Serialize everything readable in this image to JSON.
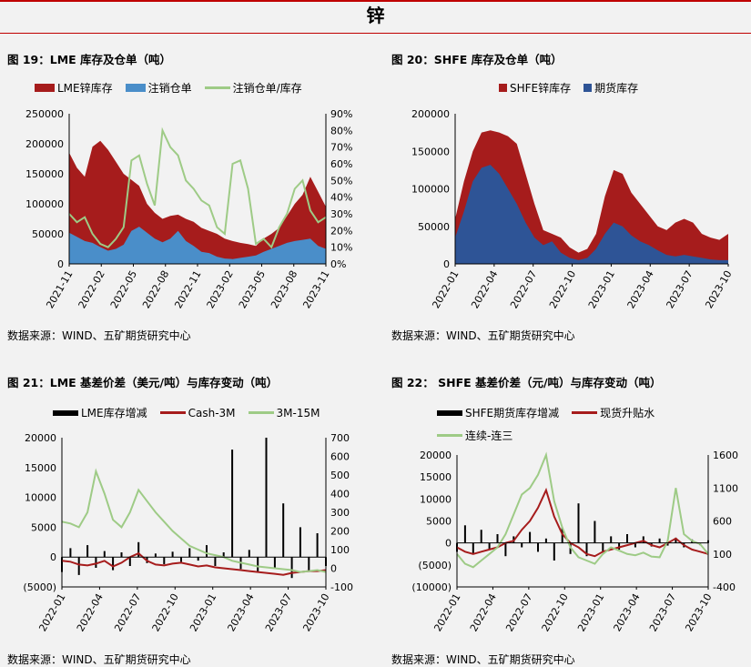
{
  "page": {
    "title": "锌"
  },
  "colors": {
    "red": "#a61c1c",
    "blue": "#2e5496",
    "light_blue": "#4a8ec9",
    "green": "#9ecb86",
    "black": "#000000",
    "neg_label": "#c00000"
  },
  "charts": [
    {
      "title": "图 19：LME 库存及仓单（吨）",
      "source": "数据来源：WIND、五矿期货研究中心",
      "legend": [
        "LME锌库存",
        "注销仓单",
        "注销仓单/库存"
      ]
    },
    {
      "title": "图 20：SHFE 库存及仓单（吨）",
      "source": "数据来源：WIND、五矿期货研究中心",
      "legend": [
        "SHFE锌库存",
        "期货库存"
      ]
    },
    {
      "title": "图 21：LME 基差价差（美元/吨）与库存变动（吨）",
      "source": "数据来源：WIND、五矿期货研究中心",
      "legend": [
        "LME库存增减",
        "Cash-3M",
        "3M-15M"
      ]
    },
    {
      "title": "图 22： SHFE 基差价差（元/吨）与库存变动（吨）",
      "source": "数据来源：WIND、五矿期货研究中心",
      "legend": [
        "SHFE期货库存增减",
        "现货升贴水",
        "连续-连三"
      ]
    }
  ],
  "chart_data": [
    {
      "type": "area",
      "x_ticks": [
        "2021-11",
        "2022-02",
        "2022-05",
        "2022-08",
        "2022-11",
        "2023-02",
        "2023-05",
        "2023-08",
        "2023-11"
      ],
      "ylim": [
        0,
        250000
      ],
      "y_ticks": [
        "0",
        "50000",
        "100000",
        "150000",
        "200000",
        "250000"
      ],
      "y2lim": [
        0,
        90
      ],
      "y2_ticks": [
        "0%",
        "10%",
        "20%",
        "30%",
        "40%",
        "50%",
        "60%",
        "70%",
        "80%",
        "90%"
      ],
      "series": [
        {
          "name": "LME锌库存",
          "kind": "area",
          "axis": "left",
          "values": [
            185000,
            160000,
            145000,
            195000,
            205000,
            190000,
            170000,
            150000,
            140000,
            130000,
            100000,
            85000,
            75000,
            80000,
            82000,
            75000,
            70000,
            60000,
            55000,
            50000,
            42000,
            38000,
            35000,
            33000,
            30000,
            42000,
            50000,
            60000,
            80000,
            100000,
            115000,
            145000,
            120000,
            95000
          ]
        },
        {
          "name": "注销仓单",
          "kind": "area",
          "axis": "left",
          "values": [
            52000,
            45000,
            38000,
            35000,
            28000,
            22000,
            25000,
            32000,
            55000,
            62000,
            52000,
            42000,
            36000,
            42000,
            55000,
            38000,
            30000,
            20000,
            18000,
            12000,
            9000,
            8000,
            10000,
            12000,
            14000,
            20000,
            25000,
            30000,
            35000,
            38000,
            40000,
            42000,
            30000,
            25000
          ]
        },
        {
          "name": "注销仓单/库存",
          "kind": "line",
          "axis": "right",
          "values": [
            30,
            25,
            28,
            18,
            12,
            10,
            15,
            22,
            62,
            65,
            48,
            35,
            80,
            70,
            65,
            50,
            45,
            38,
            35,
            22,
            18,
            60,
            62,
            45,
            12,
            15,
            10,
            22,
            30,
            45,
            50,
            32,
            25,
            28
          ]
        }
      ]
    },
    {
      "type": "area",
      "x_ticks": [
        "2022-01",
        "2022-04",
        "2022-07",
        "2022-10",
        "2023-01",
        "2023-04",
        "2023-07",
        "2023-10"
      ],
      "ylim": [
        0,
        200000
      ],
      "y_ticks": [
        "0",
        "50000",
        "100000",
        "150000",
        "200000"
      ],
      "series": [
        {
          "name": "SHFE锌库存",
          "kind": "area",
          "values": [
            60000,
            110000,
            150000,
            175000,
            178000,
            175000,
            170000,
            160000,
            120000,
            80000,
            45000,
            40000,
            35000,
            22000,
            15000,
            20000,
            40000,
            90000,
            125000,
            120000,
            95000,
            80000,
            65000,
            50000,
            45000,
            55000,
            60000,
            55000,
            40000,
            35000,
            32000,
            40000
          ]
        },
        {
          "name": "期货库存",
          "kind": "area",
          "values": [
            35000,
            70000,
            110000,
            128000,
            132000,
            120000,
            100000,
            80000,
            55000,
            35000,
            25000,
            30000,
            15000,
            8000,
            5000,
            8000,
            20000,
            40000,
            55000,
            50000,
            38000,
            30000,
            25000,
            18000,
            12000,
            10000,
            12000,
            10000,
            8000,
            6000,
            5000,
            5000
          ]
        }
      ]
    },
    {
      "type": "line",
      "x_ticks": [
        "2022-01",
        "2022-04",
        "2022-07",
        "2022-10",
        "2023-01",
        "2023-04",
        "2023-07",
        "2023-10"
      ],
      "ylim": [
        -5000,
        20000
      ],
      "y_ticks": [
        "(5000)",
        "0",
        "5000",
        "10000",
        "15000",
        "20000"
      ],
      "y2lim": [
        -100,
        700
      ],
      "y2_ticks": [
        "-100",
        "0",
        "100",
        "200",
        "300",
        "400",
        "500",
        "600",
        "700"
      ],
      "series": [
        {
          "name": "LME库存增减",
          "kind": "bar",
          "axis": "left",
          "values": [
            -2500,
            1500,
            -3000,
            2000,
            -1800,
            1000,
            -2200,
            800,
            -1500,
            2500,
            -1000,
            600,
            -1200,
            900,
            -800,
            1500,
            -600,
            2000,
            -1500,
            800,
            18000,
            -2000,
            1200,
            -2500,
            20000,
            -1800,
            9000,
            -3500,
            5000,
            -2500,
            4000,
            -1500
          ]
        },
        {
          "name": "Cash-3M",
          "kind": "line",
          "axis": "right",
          "values": [
            40,
            35,
            20,
            15,
            25,
            40,
            10,
            30,
            60,
            80,
            40,
            20,
            15,
            25,
            30,
            20,
            10,
            15,
            5,
            0,
            -5,
            -10,
            -15,
            -20,
            -25,
            -30,
            -35,
            -25,
            -20,
            -15,
            -15,
            -10
          ]
        },
        {
          "name": "3M-15M",
          "kind": "line",
          "axis": "right",
          "values": [
            250,
            240,
            220,
            300,
            520,
            400,
            260,
            220,
            300,
            420,
            360,
            300,
            250,
            200,
            160,
            120,
            100,
            80,
            70,
            60,
            40,
            30,
            20,
            10,
            5,
            0,
            -5,
            -10,
            -20,
            -15,
            -10,
            -20
          ]
        }
      ]
    },
    {
      "type": "line",
      "x_ticks": [
        "2022-01",
        "2022-04",
        "2022-07",
        "2022-10",
        "2023-01",
        "2023-04",
        "2023-07",
        "2023-10"
      ],
      "ylim": [
        -10000,
        20000
      ],
      "y_ticks": [
        "(10000)",
        "(5000)",
        "0",
        "5000",
        "10000",
        "15000",
        "20000"
      ],
      "y2lim": [
        -400,
        1600
      ],
      "y2_ticks": [
        "-400",
        "100",
        "600",
        "1100",
        "1600"
      ],
      "series": [
        {
          "name": "SHFE期货库存增减",
          "kind": "bar",
          "axis": "left",
          "values": [
            -2000,
            4000,
            -2500,
            3000,
            -1500,
            2000,
            -3000,
            1500,
            -1000,
            2500,
            -2000,
            1000,
            -4000,
            3500,
            -2500,
            9000,
            -3000,
            5000,
            -2000,
            1500,
            -1500,
            2000,
            -1000,
            1500,
            -800,
            1000,
            -600,
            1200,
            -1000,
            800,
            -500,
            600
          ]
        },
        {
          "name": "现货升贴水",
          "kind": "line",
          "axis": "left",
          "values": [
            -1000,
            -2000,
            -2500,
            -2000,
            -1500,
            -1000,
            0,
            500,
            3000,
            5000,
            8000,
            12000,
            6000,
            2000,
            0,
            -1000,
            -2500,
            -3000,
            -2000,
            -1500,
            -1000,
            -500,
            0,
            500,
            -500,
            -1000,
            0,
            1000,
            -500,
            -1500,
            -2000,
            -2500
          ]
        },
        {
          "name": "连续-连三",
          "kind": "line",
          "axis": "right",
          "values": [
            100,
            -50,
            -100,
            0,
            100,
            200,
            400,
            700,
            1000,
            1100,
            1300,
            1600,
            900,
            500,
            200,
            50,
            0,
            -50,
            100,
            200,
            150,
            100,
            80,
            120,
            60,
            50,
            300,
            1100,
            400,
            300,
            250,
            100
          ]
        }
      ]
    }
  ]
}
